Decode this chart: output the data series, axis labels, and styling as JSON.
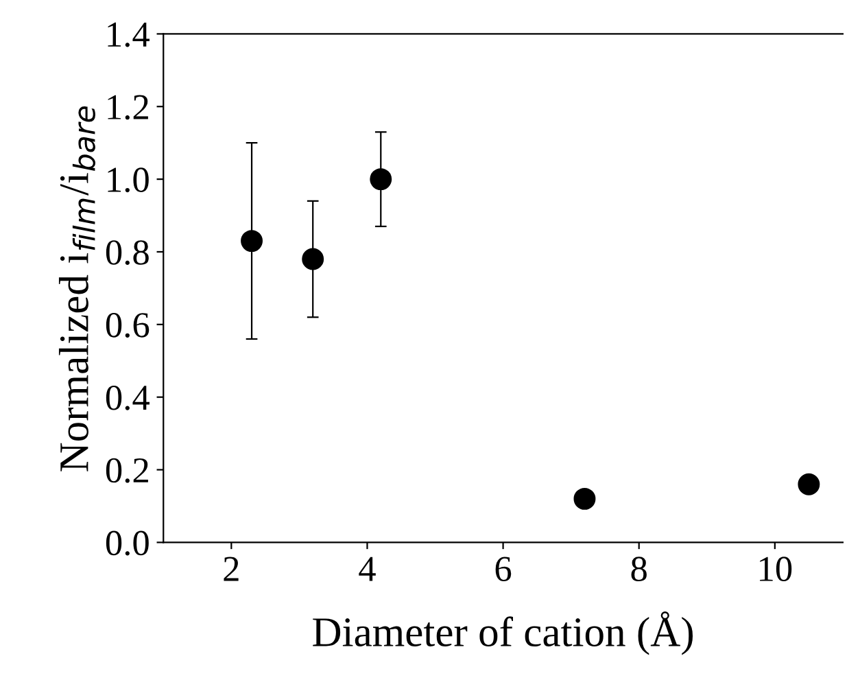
{
  "chart_data": {
    "type": "scatter",
    "xlabel": "Diameter of cation (Å)",
    "ylabel": "Normalized i$_{film}$/i$_{bare}$",
    "x": [
      2.3,
      3.2,
      4.2,
      7.2,
      10.5
    ],
    "values": [
      0.83,
      0.78,
      1.0,
      0.12,
      0.16
    ],
    "errors": [
      0.27,
      0.16,
      0.13,
      null,
      null
    ],
    "color": "#000000",
    "marker": "circle",
    "xlim": [
      1,
      11
    ],
    "ylim": [
      0,
      1.4
    ],
    "xticks": [
      2,
      4,
      6,
      8,
      10
    ],
    "yticks": [
      {
        "value": 0,
        "label": "0.0"
      },
      {
        "value": 0.2,
        "label": "0.2"
      },
      {
        "value": 0.4,
        "label": "0.4"
      },
      {
        "value": 0.6,
        "label": "0.6"
      },
      {
        "value": 0.8,
        "label": "0.8"
      },
      {
        "value": 1.0,
        "label": "1.0"
      },
      {
        "value": 1.2,
        "label": "1.2"
      },
      {
        "value": 1.4,
        "label": "1.4"
      }
    ],
    "grid": false
  }
}
